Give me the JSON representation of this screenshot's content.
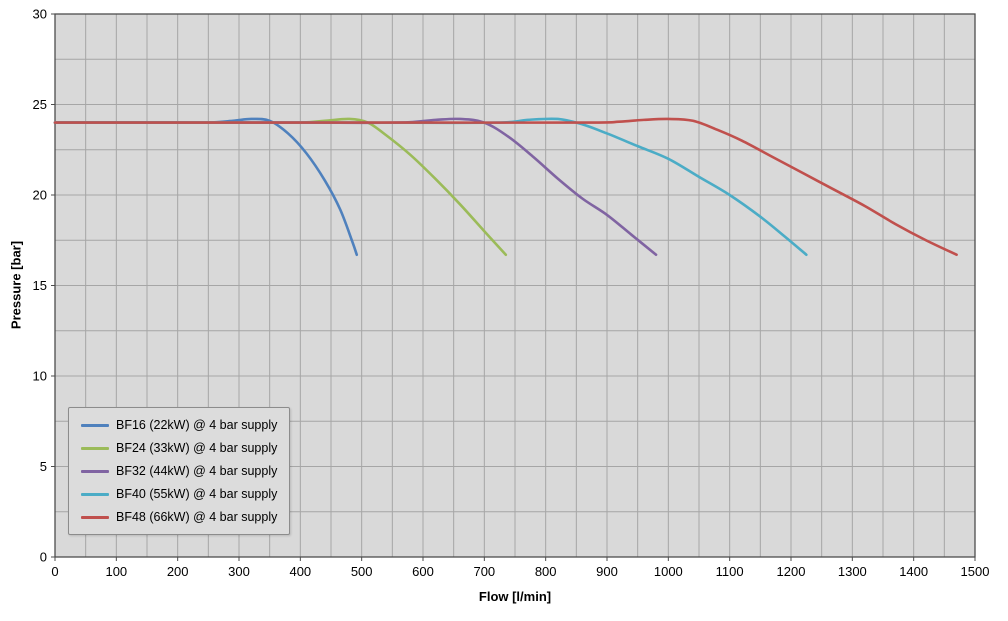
{
  "chart_data": {
    "type": "line",
    "title": "",
    "xlabel": "Flow [l/min]",
    "ylabel": "Pressure [bar]",
    "xlim": [
      0,
      1500
    ],
    "ylim": [
      0,
      30
    ],
    "x_tick_step": 100,
    "y_tick_step": 5,
    "x_grid_step": 50,
    "y_grid_step": 2.5,
    "grid": true,
    "legend_position": "inside-bottom-left",
    "plot_bg": "#d9d9d9",
    "grid_color": "#a6a6a6",
    "border_color": "#4d4d4d",
    "series": [
      {
        "name": "BF16 (22kW) @ 4 bar supply",
        "id": "bf16",
        "color": "#4f81bd",
        "points": [
          [
            0,
            24
          ],
          [
            100,
            24
          ],
          [
            200,
            24
          ],
          [
            250,
            24
          ],
          [
            290,
            24.1
          ],
          [
            320,
            24.2
          ],
          [
            350,
            24.1
          ],
          [
            380,
            23.4
          ],
          [
            410,
            22.3
          ],
          [
            440,
            20.8
          ],
          [
            465,
            19.2
          ],
          [
            485,
            17.4
          ],
          [
            492,
            16.7
          ]
        ]
      },
      {
        "name": "BF24 (33kW) @ 4 bar supply",
        "id": "bf24",
        "color": "#9bbb59",
        "points": [
          [
            0,
            24
          ],
          [
            150,
            24
          ],
          [
            300,
            24
          ],
          [
            400,
            24
          ],
          [
            440,
            24.1
          ],
          [
            480,
            24.2
          ],
          [
            510,
            24.0
          ],
          [
            540,
            23.3
          ],
          [
            580,
            22.2
          ],
          [
            620,
            20.9
          ],
          [
            660,
            19.5
          ],
          [
            700,
            18.0
          ],
          [
            735,
            16.7
          ]
        ]
      },
      {
        "name": "BF32 (44kW) @ 4 bar supply",
        "id": "bf32",
        "color": "#8064a2",
        "points": [
          [
            0,
            24
          ],
          [
            200,
            24
          ],
          [
            400,
            24
          ],
          [
            560,
            24
          ],
          [
            620,
            24.15
          ],
          [
            660,
            24.2
          ],
          [
            700,
            24.0
          ],
          [
            740,
            23.2
          ],
          [
            780,
            22.1
          ],
          [
            820,
            20.9
          ],
          [
            860,
            19.8
          ],
          [
            900,
            18.9
          ],
          [
            940,
            17.8
          ],
          [
            980,
            16.7
          ]
        ]
      },
      {
        "name": "BF40 (55kW) @ 4 bar supply",
        "id": "bf40",
        "color": "#4bacc6",
        "points": [
          [
            0,
            24
          ],
          [
            250,
            24
          ],
          [
            500,
            24
          ],
          [
            720,
            24
          ],
          [
            770,
            24.15
          ],
          [
            820,
            24.2
          ],
          [
            860,
            23.9
          ],
          [
            900,
            23.4
          ],
          [
            950,
            22.7
          ],
          [
            1000,
            22.0
          ],
          [
            1050,
            21.0
          ],
          [
            1100,
            20.0
          ],
          [
            1150,
            18.8
          ],
          [
            1190,
            17.7
          ],
          [
            1225,
            16.7
          ]
        ]
      },
      {
        "name": "BF48 (66kW) @ 4 bar supply",
        "id": "bf48",
        "color": "#c0504d",
        "points": [
          [
            0,
            24
          ],
          [
            300,
            24
          ],
          [
            600,
            24
          ],
          [
            870,
            24
          ],
          [
            920,
            24.05
          ],
          [
            960,
            24.15
          ],
          [
            1000,
            24.2
          ],
          [
            1040,
            24.1
          ],
          [
            1080,
            23.6
          ],
          [
            1120,
            23.0
          ],
          [
            1170,
            22.1
          ],
          [
            1220,
            21.2
          ],
          [
            1270,
            20.3
          ],
          [
            1320,
            19.4
          ],
          [
            1370,
            18.4
          ],
          [
            1420,
            17.5
          ],
          [
            1470,
            16.7
          ]
        ]
      }
    ]
  }
}
